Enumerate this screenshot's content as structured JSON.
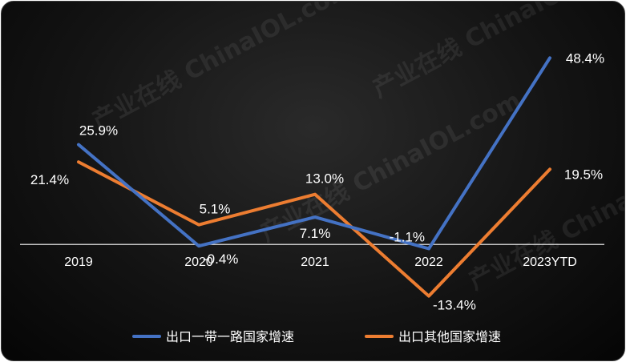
{
  "chart_data": {
    "type": "line",
    "categories": [
      "2019",
      "2020",
      "2021",
      "2022",
      "2023YTD"
    ],
    "series": [
      {
        "name": "出口一带一路国家增速",
        "values": [
          25.9,
          -0.4,
          7.1,
          -1.1,
          48.4
        ],
        "labels": [
          "25.9%",
          "-0.4%",
          "7.1%",
          "-1.1%",
          "48.4%"
        ],
        "color": "#4472C4"
      },
      {
        "name": "出口其他国家增速",
        "values": [
          21.4,
          5.1,
          13.0,
          -13.4,
          19.5
        ],
        "labels": [
          "21.4%",
          "5.1%",
          "13.0%",
          "-13.4%",
          "19.5%"
        ],
        "color": "#ED7D31"
      }
    ],
    "title": "",
    "xlabel": "",
    "ylabel": "",
    "ylim": [
      -17,
      52
    ],
    "grid": false,
    "legend": "bottom",
    "watermark": "产业在线 ChinaIOL.com"
  }
}
